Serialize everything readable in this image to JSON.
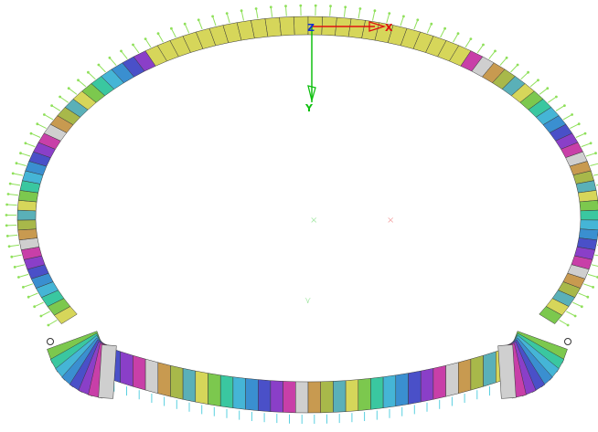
{
  "viewport": {
    "background": "#ffffff"
  },
  "axes": {
    "z_label": "Z",
    "x_label": "X",
    "y_label": "Y",
    "x_color": "#e01010",
    "y_color": "#10c010",
    "z_color": "#1030d0"
  },
  "model": {
    "lining_segment_palette": [
      "#d6d65a",
      "#7cc84e",
      "#3ac7a0",
      "#45b5d6",
      "#3a8fd0",
      "#4a50c8",
      "#8a3fc8",
      "#c83fa8",
      "#cfcfcf",
      "#c89a50",
      "#a8b84a",
      "#5ab0b8"
    ],
    "crown_color": "#d6d65a",
    "load_arrow_color": "#8fe05a",
    "invert_arrow_color": "#5ad0e0",
    "bolt_markers": 2
  }
}
